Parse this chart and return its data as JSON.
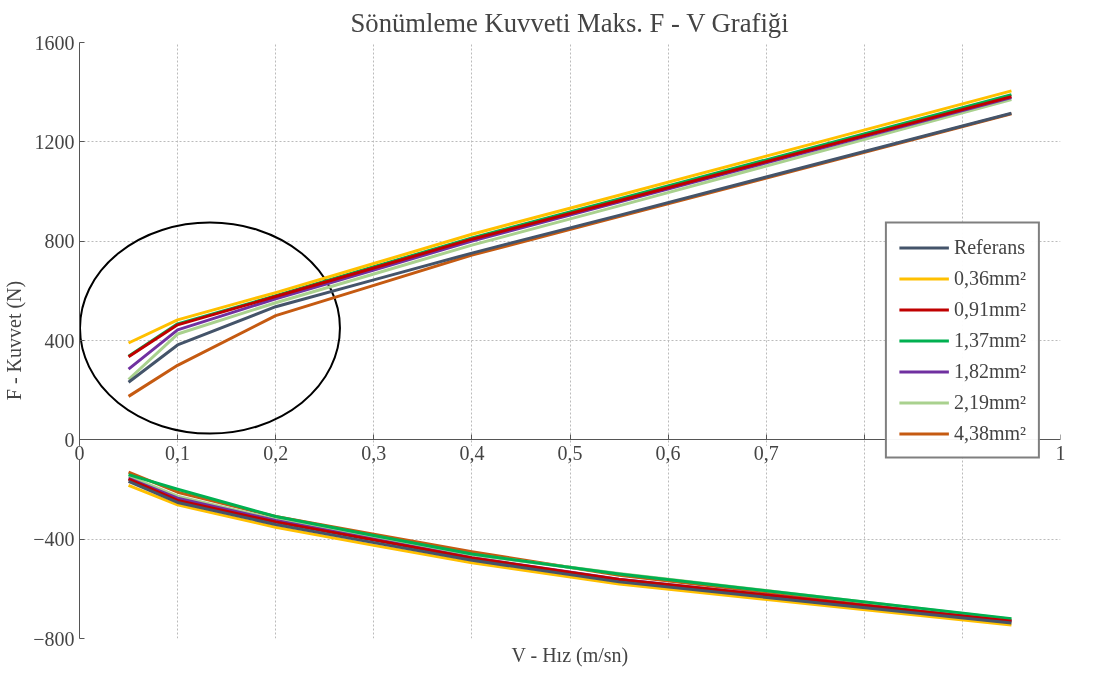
{
  "chart_data": {
    "type": "line",
    "title": "Sönümleme Kuvveti Maks. F - V Grafiği",
    "xlabel": "V - Hız (m/sn)",
    "ylabel": "F - Kuvvet (N)",
    "x": [
      0.05,
      0.1,
      0.2,
      0.3,
      0.4,
      0.55,
      0.95
    ],
    "series": [
      {
        "name": "Referans",
        "color": "#44546a",
        "values": [
          232,
          382,
          536,
          644,
          752,
          904,
          1315
        ]
      },
      {
        "name": "0,36mm²",
        "color": "#ffc000",
        "values": [
          390,
          483,
          593,
          710,
          828,
          985,
          1405
        ]
      },
      {
        "name": "0,91mm²",
        "color": "#c00000",
        "values": [
          335,
          463,
          577,
          692,
          808,
          963,
          1382
        ]
      },
      {
        "name": "1,37mm²",
        "color": "#00b050",
        "values": [
          337,
          467,
          580,
          697,
          813,
          970,
          1390
        ]
      },
      {
        "name": "1,82mm²",
        "color": "#7030a0",
        "values": [
          285,
          443,
          568,
          684,
          800,
          958,
          1378
        ]
      },
      {
        "name": "2,19mm²",
        "color": "#a9d18e",
        "values": [
          243,
          426,
          552,
          668,
          784,
          942,
          1370
        ]
      },
      {
        "name": "4,38mm²",
        "color": "#c55a11",
        "values": [
          175,
          300,
          500,
          622,
          744,
          899,
          1313
        ]
      },
      {
        "color": "#44546a",
        "values": [
          -167,
          -252,
          -341,
          -414,
          -485,
          -572,
          -738
        ]
      },
      {
        "color": "#ffc000",
        "values": [
          -183,
          -262,
          -352,
          -425,
          -495,
          -581,
          -746
        ]
      },
      {
        "color": "#c00000",
        "values": [
          -158,
          -244,
          -331,
          -403,
          -476,
          -562,
          -730
        ]
      },
      {
        "color": "#00b050",
        "values": [
          -140,
          -199,
          -309,
          -385,
          -460,
          -540,
          -720
        ]
      },
      {
        "color": "#7030a0",
        "values": [
          -155,
          -235,
          -325,
          -400,
          -475,
          -561,
          -730
        ]
      },
      {
        "color": "#a9d18e",
        "values": [
          -146,
          -227,
          -321,
          -392,
          -463,
          -538,
          -722
        ]
      },
      {
        "color": "#c55a11",
        "values": [
          -130,
          -211,
          -309,
          -380,
          -451,
          -545,
          -727
        ]
      }
    ],
    "xlim": [
      0,
      1
    ],
    "ylim": [
      -800,
      1600
    ],
    "xticks": [
      0,
      {
        "value": 0.1,
        "label": "0,1"
      },
      {
        "value": 0.2,
        "label": "0,2"
      },
      {
        "value": 0.3,
        "label": "0,3"
      },
      {
        "value": 0.4,
        "label": "0,4"
      },
      {
        "value": 0.5,
        "label": "0,5"
      },
      {
        "value": 0.6,
        "label": "0,6"
      },
      {
        "value": 0.7,
        "label": "0,7"
      },
      {
        "value": 0.8,
        "label": null
      },
      {
        "value": 0.9,
        "label": null
      },
      1
    ],
    "yticks": [
      -800,
      -400,
      0,
      400,
      800,
      1200,
      1600
    ],
    "grid": true,
    "legend": "right",
    "line_style": "solid"
  }
}
